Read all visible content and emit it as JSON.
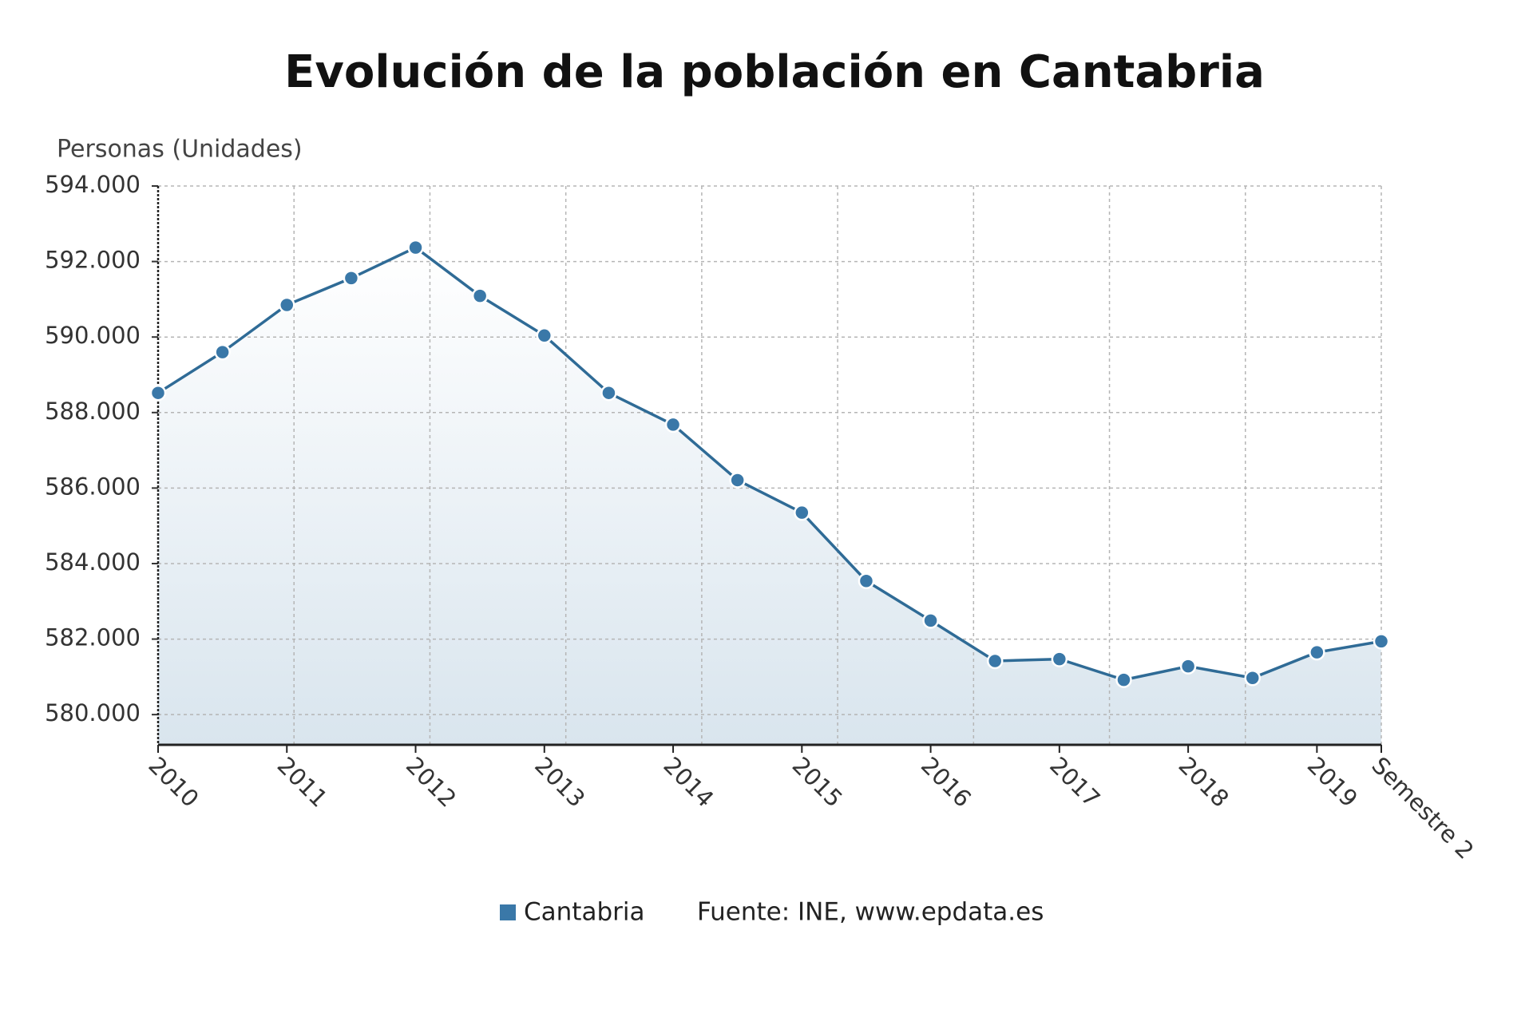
{
  "chart_data": {
    "type": "line",
    "title": "Evolución de la población en Cantabria",
    "y_label": "Personas (Unidades)",
    "source": "Fuente: INE, www.epdata.es",
    "categories": [
      "2010",
      null,
      "2011",
      null,
      "2012",
      null,
      "2013",
      null,
      "2014",
      null,
      "2015",
      null,
      "2016",
      null,
      "2017",
      null,
      "2018",
      null,
      "2019",
      "Semestre 2"
    ],
    "series": [
      {
        "name": "Cantabria",
        "color": "#3a78a8",
        "values": [
          588520,
          589600,
          590850,
          591560,
          592370,
          591090,
          590040,
          588520,
          587680,
          586210,
          585350,
          583540,
          582490,
          581420,
          581470,
          580920,
          581280,
          580970,
          581650,
          581940
        ]
      }
    ],
    "ylim": [
      579200,
      594000
    ],
    "yticks": [
      {
        "value": 580000,
        "label": "580.000"
      },
      {
        "value": 582000,
        "label": "582.000"
      },
      {
        "value": 584000,
        "label": "584.000"
      },
      {
        "value": 586000,
        "label": "586.000"
      },
      {
        "value": 588000,
        "label": "588.000"
      },
      {
        "value": 590000,
        "label": "590.000"
      },
      {
        "value": 592000,
        "label": "592.000"
      },
      {
        "value": 594000,
        "label": "594.000"
      }
    ],
    "grid": true
  }
}
